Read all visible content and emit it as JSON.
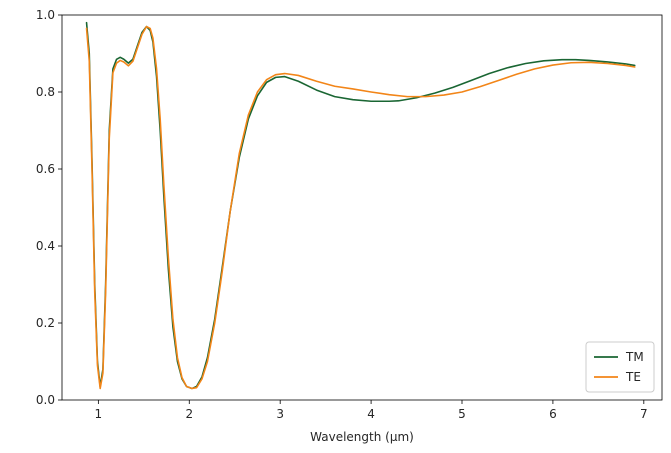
{
  "chart_data": {
    "type": "line",
    "title": "",
    "xlabel": "Wavelength (µm)",
    "ylabel": "",
    "xlim": [
      0.6,
      7.2
    ],
    "ylim": [
      0.0,
      1.0
    ],
    "xticks": [
      1,
      2,
      3,
      4,
      5,
      6,
      7
    ],
    "yticks": [
      0.0,
      0.2,
      0.4,
      0.6,
      0.8,
      1.0
    ],
    "xtick_labels": [
      "1",
      "2",
      "3",
      "4",
      "5",
      "6",
      "7"
    ],
    "ytick_labels": [
      "0.0",
      "0.2",
      "0.4",
      "0.6",
      "0.8",
      "1.0"
    ],
    "grid": false,
    "legend_position": "bottom-right",
    "series": [
      {
        "name": "TM",
        "color": "#1a6633",
        "x": [
          0.87,
          0.9,
          0.93,
          0.96,
          0.99,
          1.02,
          1.05,
          1.08,
          1.12,
          1.16,
          1.2,
          1.24,
          1.28,
          1.33,
          1.38,
          1.43,
          1.48,
          1.53,
          1.57,
          1.6,
          1.64,
          1.68,
          1.72,
          1.77,
          1.82,
          1.87,
          1.92,
          1.97,
          2.03,
          2.08,
          2.14,
          2.2,
          2.28,
          2.36,
          2.45,
          2.55,
          2.65,
          2.75,
          2.85,
          2.95,
          3.05,
          3.2,
          3.4,
          3.6,
          3.8,
          4.0,
          4.2,
          4.3,
          4.5,
          4.7,
          4.9,
          5.1,
          5.3,
          5.5,
          5.7,
          5.9,
          6.1,
          6.25,
          6.4,
          6.6,
          6.8,
          6.9
        ],
        "y": [
          0.98,
          0.9,
          0.62,
          0.3,
          0.1,
          0.035,
          0.08,
          0.3,
          0.7,
          0.86,
          0.885,
          0.89,
          0.885,
          0.875,
          0.885,
          0.92,
          0.955,
          0.97,
          0.96,
          0.93,
          0.84,
          0.7,
          0.53,
          0.34,
          0.19,
          0.1,
          0.055,
          0.035,
          0.03,
          0.035,
          0.06,
          0.11,
          0.21,
          0.34,
          0.49,
          0.63,
          0.73,
          0.79,
          0.825,
          0.838,
          0.84,
          0.828,
          0.805,
          0.788,
          0.78,
          0.776,
          0.776,
          0.777,
          0.785,
          0.797,
          0.812,
          0.83,
          0.848,
          0.863,
          0.874,
          0.881,
          0.884,
          0.884,
          0.882,
          0.878,
          0.873,
          0.869
        ]
      },
      {
        "name": "TE",
        "color": "#f28518",
        "x": [
          0.87,
          0.9,
          0.93,
          0.96,
          0.99,
          1.02,
          1.05,
          1.08,
          1.12,
          1.16,
          1.2,
          1.24,
          1.28,
          1.33,
          1.38,
          1.43,
          1.48,
          1.53,
          1.57,
          1.6,
          1.64,
          1.68,
          1.72,
          1.77,
          1.82,
          1.87,
          1.92,
          1.97,
          2.03,
          2.08,
          2.14,
          2.2,
          2.28,
          2.36,
          2.45,
          2.55,
          2.65,
          2.75,
          2.85,
          2.95,
          3.05,
          3.2,
          3.4,
          3.6,
          3.8,
          4.0,
          4.2,
          4.4,
          4.6,
          4.8,
          5.0,
          5.2,
          5.4,
          5.6,
          5.8,
          6.0,
          6.2,
          6.4,
          6.6,
          6.8,
          6.9
        ],
        "y": [
          0.965,
          0.88,
          0.6,
          0.28,
          0.09,
          0.03,
          0.07,
          0.28,
          0.68,
          0.85,
          0.875,
          0.882,
          0.878,
          0.868,
          0.88,
          0.915,
          0.95,
          0.97,
          0.965,
          0.94,
          0.86,
          0.73,
          0.56,
          0.37,
          0.21,
          0.11,
          0.058,
          0.035,
          0.03,
          0.032,
          0.055,
          0.1,
          0.2,
          0.33,
          0.49,
          0.64,
          0.74,
          0.8,
          0.832,
          0.845,
          0.848,
          0.843,
          0.828,
          0.815,
          0.808,
          0.8,
          0.793,
          0.788,
          0.788,
          0.792,
          0.8,
          0.814,
          0.83,
          0.846,
          0.86,
          0.87,
          0.876,
          0.877,
          0.874,
          0.869,
          0.865
        ]
      }
    ]
  }
}
